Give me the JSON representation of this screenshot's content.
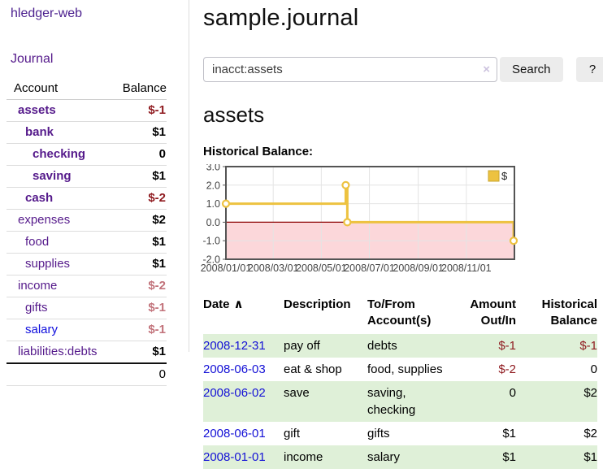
{
  "app": {
    "title": "hledger-web"
  },
  "sidebar": {
    "journal_link": "Journal",
    "accounts_table": {
      "headers": {
        "account": "Account",
        "balance": "Balance"
      },
      "rows": [
        {
          "name": "assets",
          "depth": 1,
          "bold": true,
          "balance": "$-1",
          "neg": "neg-strong"
        },
        {
          "name": "bank",
          "depth": 2,
          "bold": true,
          "balance": "$1"
        },
        {
          "name": "checking",
          "depth": 3,
          "bold": true,
          "balance": "0"
        },
        {
          "name": "saving",
          "depth": 3,
          "bold": true,
          "balance": "$1"
        },
        {
          "name": "cash",
          "depth": 2,
          "bold": true,
          "balance": "$-2",
          "neg": "neg-strong"
        },
        {
          "name": "expenses",
          "depth": 1,
          "bold": false,
          "balance": "$2"
        },
        {
          "name": "food",
          "depth": 2,
          "bold": false,
          "balance": "$1"
        },
        {
          "name": "supplies",
          "depth": 2,
          "bold": false,
          "balance": "$1"
        },
        {
          "name": "income",
          "depth": 1,
          "bold": false,
          "balance": "$-2",
          "neg": "neg-soft"
        },
        {
          "name": "gifts",
          "depth": 2,
          "bold": false,
          "balance": "$-1",
          "neg": "neg-soft"
        },
        {
          "name": "salary",
          "depth": 2,
          "bold": false,
          "balance": "$-1",
          "neg": "neg-soft",
          "link": "blue"
        },
        {
          "name": "liabilities:debts",
          "depth": 1,
          "bold": false,
          "balance": "$1"
        }
      ],
      "total": "0"
    }
  },
  "main": {
    "title": "sample.journal",
    "search": {
      "value": "inacct:assets",
      "clear_icon": "×",
      "button_label": "Search",
      "help_label": "?"
    },
    "account_heading": "assets"
  },
  "chart_data": {
    "type": "line",
    "title": "Historical Balance:",
    "series": [
      {
        "name": "$",
        "color": "#edc240",
        "step": true,
        "points": [
          [
            "2008-01-01",
            1
          ],
          [
            "2008-06-01",
            2
          ],
          [
            "2008-06-03",
            0
          ],
          [
            "2008-12-31",
            -1
          ]
        ]
      }
    ],
    "x_domain": [
      "2008-01-01",
      "2009-01-01"
    ],
    "x_ticks": [
      "2008/01/01",
      "2008/03/01",
      "2008/05/01",
      "2008/07/01",
      "2008/09/01",
      "2008/11/01"
    ],
    "y_ticks": [
      3.0,
      2.0,
      1.0,
      0.0,
      -1.0,
      -2.0
    ],
    "ylim": [
      -2,
      3
    ],
    "grid": true,
    "legend_position": "top-right",
    "legend_label": "$",
    "colors": {
      "line": "#edc240",
      "marker_fill": "#ffffff",
      "plot_border": "#545454",
      "gridline": "#e4e4e4",
      "zero_line": "#8b0000",
      "negative_region": "#fcd7da",
      "tick_label": "#444444",
      "legend_swatch_border": "#c9a62e"
    }
  },
  "register": {
    "headers": {
      "date": "Date",
      "sort_icon": "∧",
      "description": "Description",
      "accounts": "To/From Account(s)",
      "amount": "Amount Out/In",
      "balance": "Historical Balance"
    },
    "rows": [
      {
        "date": "2008-12-31",
        "description": "pay off",
        "accounts": "debts",
        "amount": "$-1",
        "balance": "$-1"
      },
      {
        "date": "2008-06-03",
        "description": "eat & shop",
        "accounts": "food, supplies",
        "amount": "$-2",
        "balance": "0"
      },
      {
        "date": "2008-06-02",
        "description": "save",
        "accounts": "saving, checking",
        "amount": "0",
        "balance": "$2"
      },
      {
        "date": "2008-06-01",
        "description": "gift",
        "accounts": "gifts",
        "amount": "$1",
        "balance": "$2"
      },
      {
        "date": "2008-01-01",
        "description": "income",
        "accounts": "salary",
        "amount": "$1",
        "balance": "$1"
      }
    ]
  }
}
